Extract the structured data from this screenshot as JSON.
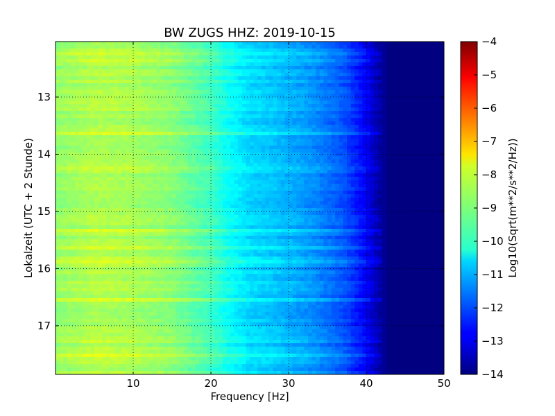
{
  "chart_data": {
    "type": "heatmap",
    "title": "BW ZUGS HHZ: 2019-10-15",
    "xlabel": "Frequency [Hz]",
    "ylabel": "Lokalzeit (UTC + 2 Stunde)",
    "xlim": [
      0,
      50
    ],
    "ylim": [
      12.03,
      17.85
    ],
    "y_inverted": true,
    "x_ticks": [
      10,
      20,
      30,
      40,
      50
    ],
    "y_ticks": [
      13,
      14,
      15,
      16,
      17
    ],
    "grid": true,
    "colormap": "jet",
    "colorbar": {
      "label": "Log10(Sqrt(m**2/s**2/Hz))",
      "range": [
        -14,
        -4
      ],
      "ticks": [
        -4,
        -5,
        -6,
        -7,
        -8,
        -9,
        -10,
        -11,
        -12,
        -13,
        -14
      ]
    },
    "spectrum_profile": {
      "frequencies_hz": [
        0,
        5,
        10,
        15,
        20,
        22,
        25,
        28,
        30,
        33,
        35,
        37,
        39,
        40,
        41,
        42,
        43,
        45,
        50
      ],
      "log10_amplitude": [
        -8.8,
        -8.5,
        -8.6,
        -8.9,
        -9.6,
        -10.1,
        -10.6,
        -10.8,
        -11.0,
        -11.3,
        -11.6,
        -11.9,
        -12.5,
        -12.8,
        -13.3,
        -13.7,
        -14.0,
        -14.0,
        -14.0
      ]
    }
  }
}
